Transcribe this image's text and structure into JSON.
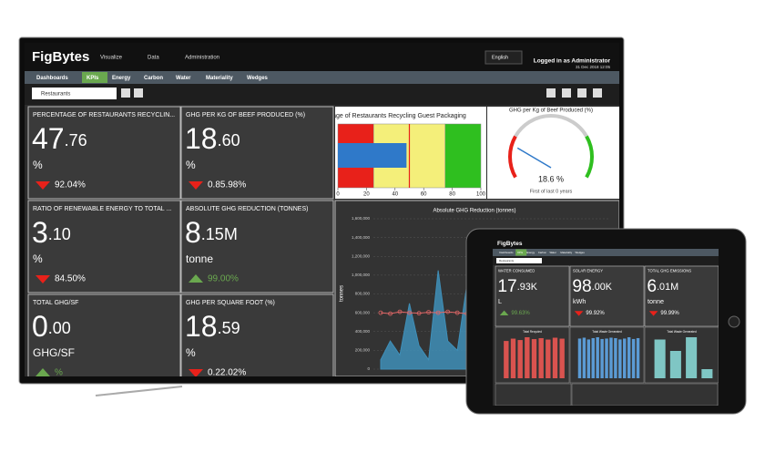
{
  "monitor": {
    "brand": "FigBytes",
    "menu": [
      "Visualize",
      "Data",
      "Administration"
    ],
    "language": "English",
    "user": "Logged in as Administrator",
    "date": "31 Dec 2018 12:05",
    "tabs": [
      "Dashboards",
      "KPIs",
      "Energy",
      "Carbon",
      "Water",
      "Materiality",
      "Wedges"
    ],
    "active_tab": 1,
    "search": "Restaurants",
    "tiles": [
      {
        "title": "PERCENTAGE OF RESTAURANTS RECYCLIN...",
        "value_int": "47",
        "value_dec": ".76",
        "unit": "%",
        "trend": "down",
        "change": "92.04%"
      },
      {
        "title": "GHG PER KG OF BEEF PRODUCED (%)",
        "value_int": "18",
        "value_dec": ".60",
        "unit": "%",
        "trend": "down",
        "change": "0.85.98%"
      },
      {
        "title": "RATIO OF RENEWABLE ENERGY TO TOTAL ...",
        "value_int": "3",
        "value_dec": ".10",
        "unit": "%",
        "trend": "down",
        "change": "84.50%"
      },
      {
        "title": "ABSOLUTE GHG REDUCTION (TONNES)",
        "value_int": "8",
        "value_dec": ".15M",
        "unit": "tonne",
        "trend": "up",
        "change": "99.00%"
      },
      {
        "title": "TOTAL GHG/SF",
        "value_int": "0",
        "value_dec": ".00",
        "unit": "GHG/SF",
        "trend": "up",
        "change": "%"
      },
      {
        "title": "GHG PER SQUARE FOOT (%)",
        "value_int": "18",
        "value_dec": ".59",
        "unit": "%",
        "trend": "down",
        "change": "0.22.02%"
      }
    ],
    "bullet_chart": {
      "title": "Percentage of Restaurants Recycling Guest Packaging",
      "xlim": [
        0,
        100
      ],
      "xticks": [
        0,
        20,
        40,
        60,
        80,
        100
      ],
      "bands": [
        {
          "to": 25,
          "color": "#e8211a"
        },
        {
          "to": 75,
          "color": "#f4ef7a"
        },
        {
          "to": 100,
          "color": "#2fbf1f"
        }
      ],
      "value": 48,
      "value_color": "#2f79c9",
      "target": 50,
      "target_color": "#e8211a"
    },
    "gauge": {
      "title": "GHG per Kg of Beef Produced (%)",
      "range": [
        0,
        100
      ],
      "value": 18.6,
      "value_label": "18.6 %",
      "subtitle": "First of last 0 years"
    },
    "area_chart": {
      "title": "Absolute GHG Reduction (tonnes)",
      "y_label": "tonnes",
      "ylim": [
        0,
        1600000
      ],
      "yticks": [
        0,
        {
          "value": 200000,
          "label": "200,000"
        },
        {
          "value": 400000,
          "label": "400,000"
        },
        {
          "value": 600000,
          "label": "600,000"
        },
        {
          "value": 800000,
          "label": "800,000"
        },
        {
          "value": 1000000,
          "label": "1,000,000"
        },
        {
          "value": 1200000,
          "label": "1,200,000"
        },
        {
          "value": 1400000,
          "label": "1,400,000"
        },
        {
          "value": 1600000,
          "label": "1,600,000"
        }
      ],
      "series": [
        {
          "color": "#3f8fb8",
          "values": [
            100000,
            300000,
            150000,
            700000,
            250000,
            100000,
            1050000,
            300000,
            200000,
            900000,
            150000,
            650000,
            1000000,
            200000,
            100000,
            650000,
            200000,
            500000,
            150000,
            80000,
            300000,
            100000,
            50000,
            150000
          ]
        },
        {
          "color": "#e06666",
          "values": [
            600000,
            590000,
            610000,
            600000,
            595000,
            605000,
            600000,
            610000,
            600000,
            590000,
            600000,
            605000,
            600000,
            595000,
            610000,
            600000,
            600000,
            590000,
            605000,
            600000,
            600000,
            595000,
            600000,
            605000
          ]
        }
      ]
    }
  },
  "tablet": {
    "tiles": [
      {
        "title": "WATER CONSUMED",
        "value_int": "17",
        "value_dec": ".93K",
        "unit": "L",
        "trend": "up",
        "change": "99.63%"
      },
      {
        "title": "SOLAR ENERGY",
        "value_int": "98",
        "value_dec": ".00K",
        "unit": "kWh",
        "trend": "down",
        "change": "99.92%"
      },
      {
        "title": "TOTAL GHG EMISSIONS",
        "value_int": "6",
        "value_dec": ".01M",
        "unit": "tonne",
        "trend": "down",
        "change": "99.99%"
      }
    ],
    "charts": [
      {
        "title": "Total Recycled",
        "color": "#d9534f",
        "values": [
          80,
          85,
          82,
          88,
          84,
          86,
          83,
          87,
          85
        ]
      },
      {
        "title": "Total Waste Generated",
        "color": "#5b9bd5",
        "values": [
          90,
          92,
          88,
          91,
          93,
          89,
          90,
          92,
          91,
          88,
          90,
          93,
          89,
          91
        ]
      },
      {
        "title": "Total Waste Generated",
        "color": "#7fc6c4",
        "values": [
          85,
          60,
          90,
          20
        ]
      }
    ]
  }
}
